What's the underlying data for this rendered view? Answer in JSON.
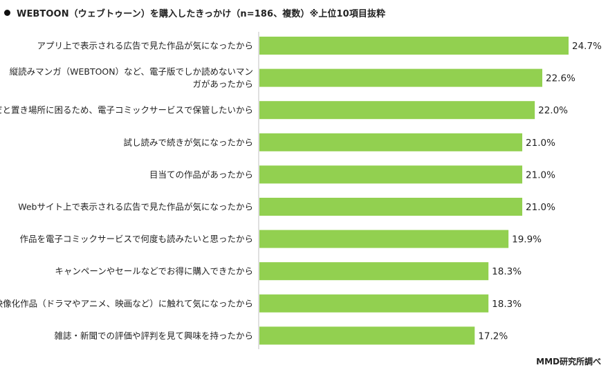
{
  "chart_data": {
    "type": "bar",
    "orientation": "horizontal",
    "title": "WEBTOON（ウェブトゥーン）を購入したきっかけ（n=186、複数）※上位10項目抜粋",
    "categories": [
      "アプリ上で表示される広告で見た作品が気になったから",
      "縦読みマンガ（WEBTOON）など、電子版でしか読めないマンガがあったから",
      "紙だと置き場所に困るため、電子コミックサービスで保管したいから",
      "試し読みで続きが気になったから",
      "目当ての作品があったから",
      "Webサイト上で表示される広告で見た作品が気になったから",
      "作品を電子コミックサービスで何度も読みたいと思ったから",
      "キャンペーンやセールなどでお得に購入できたから",
      "映像化作品（ドラマやアニメ、映画など）に触れて気になったから",
      "雑誌・新聞での評価や評判を見て興味を持ったから"
    ],
    "category_lines": [
      [
        "アプリ上で表示される広告で見た作品が気になったから"
      ],
      [
        "縦読みマンガ（WEBTOON）など、電子版でしか読めないマン",
        "ガがあったから"
      ],
      [
        "紙だと置き場所に困るため、電子コミックサービスで保管したいから"
      ],
      [
        "試し読みで続きが気になったから"
      ],
      [
        "目当ての作品があったから"
      ],
      [
        "Webサイト上で表示される広告で見た作品が気になったから"
      ],
      [
        "作品を電子コミックサービスで何度も読みたいと思ったから"
      ],
      [
        "キャンペーンやセールなどでお得に購入できたから"
      ],
      [
        "映像化作品（ドラマやアニメ、映画など）に触れて気になったから"
      ],
      [
        "雑誌・新聞での評価や評判を見て興味を持ったから"
      ]
    ],
    "values": [
      24.7,
      22.6,
      22.0,
      21.0,
      21.0,
      21.0,
      19.9,
      18.3,
      18.3,
      17.2
    ],
    "value_labels": [
      "24.7%",
      "22.6%",
      "22.0%",
      "21.0%",
      "21.0%",
      "21.0%",
      "19.9%",
      "18.3%",
      "18.3%",
      "17.2%"
    ],
    "xlim": [
      0,
      25.5
    ],
    "grid": false,
    "legend": "none",
    "bar_color": "#92d050",
    "axis_color": "#bfbfbf"
  },
  "credit": "MMD研究所調べ"
}
